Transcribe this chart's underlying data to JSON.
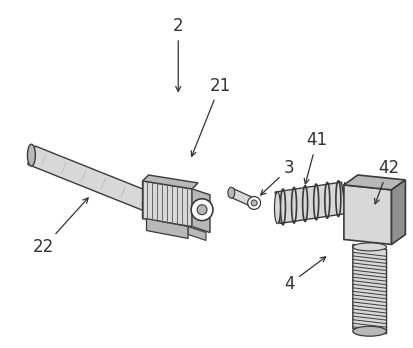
{
  "background_color": "#ffffff",
  "line_color": "#3a3a3a",
  "gray_light": "#d8d8d8",
  "gray_mid": "#b8b8b8",
  "gray_dark": "#909090",
  "label_color": "#333333",
  "figsize": [
    4.14,
    3.48
  ],
  "dpi": 100
}
